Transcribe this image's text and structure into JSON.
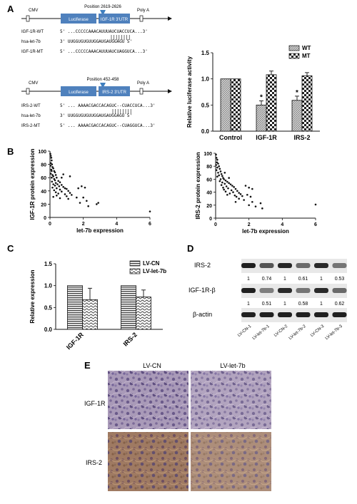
{
  "panels": {
    "a": {
      "label": "A",
      "igf": {
        "position": "Position  2619-2626",
        "cmv": "CMV",
        "luciferase": "Luciferase",
        "utr": "IGF-1R 3'UTR",
        "polya": "Poly A",
        "rows": [
          {
            "name": "IGF-1R-WT",
            "seq": "5' ...CCCCCAAACAUUUAUCUACCUCA...3'"
          },
          {
            "name": "hsa-let-7b",
            "seq": "3' UUGGUGUGUUGGAUGAUGGAGU 5'"
          },
          {
            "name": "IGF-1R-MT",
            "seq": "5' ...CCCCCAAACAUUUAUCUAGGUCA...3'"
          }
        ]
      },
      "irs": {
        "position": "Position  452-458",
        "cmv": "CMV",
        "luciferase": "Luciferase",
        "utr": "IRS-2 3'UTR",
        "polya": "Poly A",
        "rows": [
          {
            "name": "IRS-2-WT",
            "seq": "5' ... AAAACGACCACAGUC--CUACCUCA...3'"
          },
          {
            "name": "hsa-let-7b",
            "seq": "3' UUGGUGUGUUGGAUGAUGGAGU 5'"
          },
          {
            "name": "IRS-2-MT",
            "seq": "5' ... AAAACGACCACAGUC--CUAGGUCA...3'"
          }
        ]
      }
    },
    "b": {
      "label": "B"
    },
    "c": {
      "label": "C"
    },
    "d": {
      "label": "D",
      "rows": [
        {
          "name": "IRS-2",
          "values": [
            "1",
            "0.74",
            "1",
            "0.61",
            "1",
            "0.53"
          ]
        },
        {
          "name": "IGF-1R-β",
          "values": [
            "1",
            "0.51",
            "1",
            "0.58",
            "1",
            "0.62"
          ]
        },
        {
          "name": "β-actin",
          "values": []
        }
      ],
      "lanes": [
        "LV-CN-1",
        "LV-let-7b-1",
        "LV-CN-2",
        "LV-let-7b-2",
        "LV-CN-3",
        "LV-let-7b-3"
      ]
    },
    "e": {
      "label": "E",
      "cols": [
        "LV-CN",
        "LV-let-7b"
      ],
      "rows": [
        "IGF-1R",
        "IRS-2"
      ]
    }
  },
  "chart_data": [
    {
      "id": "luciferase",
      "type": "bar",
      "title": "",
      "ylabel": "Relative luciferase activity",
      "xlabel": "",
      "categories": [
        "Control",
        "IGF-1R",
        "IRS-2"
      ],
      "series": [
        {
          "name": "WT",
          "values": [
            1.0,
            0.5,
            0.59
          ],
          "errors": [
            0,
            0.08,
            0.08
          ]
        },
        {
          "name": "MT",
          "values": [
            1.0,
            1.08,
            1.06
          ],
          "errors": [
            0,
            0.07,
            0.06
          ]
        }
      ],
      "significance": [
        "",
        "*",
        "*"
      ],
      "ylim": [
        0,
        1.5
      ],
      "yticks": [
        "0.0",
        "0.5",
        "1.0",
        "1.5"
      ],
      "legend": "top-right"
    },
    {
      "id": "scatter-igf",
      "type": "scatter",
      "xlabel": "let-7b expression",
      "ylabel": "IGF-1R protein expression",
      "xlim": [
        0,
        6
      ],
      "ylim": [
        0,
        100
      ],
      "xticks": [
        "0",
        "2",
        "4",
        "6"
      ],
      "yticks": [
        "0",
        "20",
        "40",
        "60",
        "80",
        "100"
      ],
      "points": [
        [
          0.02,
          96
        ],
        [
          0.05,
          93
        ],
        [
          0.08,
          90
        ],
        [
          0.1,
          86
        ],
        [
          0.05,
          82
        ],
        [
          0.12,
          80
        ],
        [
          0.03,
          78
        ],
        [
          0.15,
          76
        ],
        [
          0.2,
          74
        ],
        [
          0.08,
          72
        ],
        [
          0.1,
          70
        ],
        [
          0.25,
          70
        ],
        [
          0.3,
          68
        ],
        [
          0.05,
          66
        ],
        [
          0.15,
          64
        ],
        [
          0.35,
          64
        ],
        [
          0.2,
          62
        ],
        [
          0.1,
          60
        ],
        [
          0.4,
          60
        ],
        [
          0.25,
          58
        ],
        [
          0.3,
          56
        ],
        [
          0.5,
          55
        ],
        [
          0.12,
          54
        ],
        [
          0.6,
          53
        ],
        [
          0.35,
          52
        ],
        [
          0.2,
          50
        ],
        [
          0.45,
          50
        ],
        [
          0.7,
          49
        ],
        [
          0.3,
          48
        ],
        [
          0.55,
          47
        ],
        [
          0.8,
          46
        ],
        [
          0.15,
          45
        ],
        [
          0.4,
          44
        ],
        [
          0.9,
          44
        ],
        [
          1.0,
          43
        ],
        [
          0.6,
          42
        ],
        [
          0.25,
          41
        ],
        [
          1.1,
          40
        ],
        [
          0.7,
          39
        ],
        [
          0.35,
          38
        ],
        [
          1.2,
          37
        ],
        [
          0.5,
          36
        ],
        [
          0.9,
          35
        ],
        [
          1.3,
          34
        ],
        [
          0.4,
          33
        ],
        [
          1.0,
          32
        ],
        [
          0.2,
          31
        ],
        [
          1.6,
          30
        ],
        [
          0.6,
          29
        ],
        [
          1.1,
          28
        ],
        [
          1.9,
          47
        ],
        [
          2.1,
          45
        ],
        [
          1.7,
          44
        ],
        [
          2.0,
          30
        ],
        [
          2.2,
          25
        ],
        [
          1.8,
          22
        ],
        [
          2.8,
          20
        ],
        [
          2.9,
          22
        ],
        [
          2.3,
          17
        ],
        [
          6.0,
          9
        ],
        [
          0.7,
          60
        ],
        [
          0.8,
          65
        ],
        [
          1.2,
          62
        ]
      ]
    },
    {
      "id": "scatter-irs",
      "type": "scatter",
      "xlabel": "let-7b expression",
      "ylabel": "IRS-2 protein expression",
      "xlim": [
        0,
        6
      ],
      "ylim": [
        0,
        100
      ],
      "xticks": [
        "0",
        "2",
        "4",
        "6"
      ],
      "yticks": [
        "0",
        "20",
        "40",
        "60",
        "80",
        "100"
      ],
      "points": [
        [
          0.02,
          98
        ],
        [
          0.05,
          93
        ],
        [
          0.1,
          90
        ],
        [
          0.08,
          86
        ],
        [
          0.15,
          84
        ],
        [
          0.03,
          82
        ],
        [
          0.2,
          80
        ],
        [
          0.1,
          78
        ],
        [
          0.25,
          76
        ],
        [
          0.05,
          74
        ],
        [
          0.3,
          72
        ],
        [
          0.15,
          70
        ],
        [
          0.35,
          68
        ],
        [
          0.2,
          66
        ],
        [
          0.4,
          65
        ],
        [
          0.1,
          64
        ],
        [
          0.45,
          62
        ],
        [
          0.3,
          60
        ],
        [
          0.5,
          60
        ],
        [
          0.6,
          58
        ],
        [
          0.25,
          57
        ],
        [
          0.7,
          56
        ],
        [
          0.4,
          55
        ],
        [
          0.8,
          54
        ],
        [
          0.55,
          53
        ],
        [
          0.9,
          52
        ],
        [
          0.35,
          51
        ],
        [
          1.0,
          50
        ],
        [
          0.65,
          49
        ],
        [
          1.1,
          48
        ],
        [
          0.45,
          47
        ],
        [
          0.75,
          46
        ],
        [
          1.2,
          45
        ],
        [
          0.5,
          44
        ],
        [
          0.95,
          43
        ],
        [
          1.3,
          42
        ],
        [
          0.6,
          41
        ],
        [
          1.05,
          40
        ],
        [
          1.4,
          39
        ],
        [
          0.85,
          38
        ],
        [
          1.5,
          37
        ],
        [
          0.7,
          36
        ],
        [
          1.15,
          35
        ],
        [
          1.6,
          34
        ],
        [
          1.25,
          33
        ],
        [
          1.8,
          50
        ],
        [
          2.0,
          47
        ],
        [
          2.2,
          45
        ],
        [
          1.9,
          36
        ],
        [
          2.1,
          33
        ],
        [
          1.4,
          30
        ],
        [
          1.7,
          28
        ],
        [
          1.2,
          25
        ],
        [
          2.2,
          25
        ],
        [
          2.0,
          20
        ],
        [
          2.4,
          18
        ],
        [
          2.7,
          23
        ],
        [
          2.8,
          15
        ],
        [
          6.0,
          21
        ],
        [
          0.55,
          70
        ],
        [
          0.8,
          62
        ]
      ]
    },
    {
      "id": "relative-expression",
      "type": "bar",
      "title": "",
      "ylabel": "Relative expression",
      "xlabel": "",
      "categories": [
        "IGF-1R",
        "IRS-2"
      ],
      "series": [
        {
          "name": "LV-CN",
          "values": [
            1.0,
            1.0
          ],
          "errors": [
            0,
            0
          ]
        },
        {
          "name": "LV-let-7b",
          "values": [
            0.68,
            0.74
          ],
          "errors": [
            0.26,
            0.16
          ]
        }
      ],
      "ylim": [
        0,
        1.5
      ],
      "yticks": [
        "0.0",
        "0.5",
        "1.0",
        "1.5"
      ],
      "legend": "top-right"
    }
  ]
}
